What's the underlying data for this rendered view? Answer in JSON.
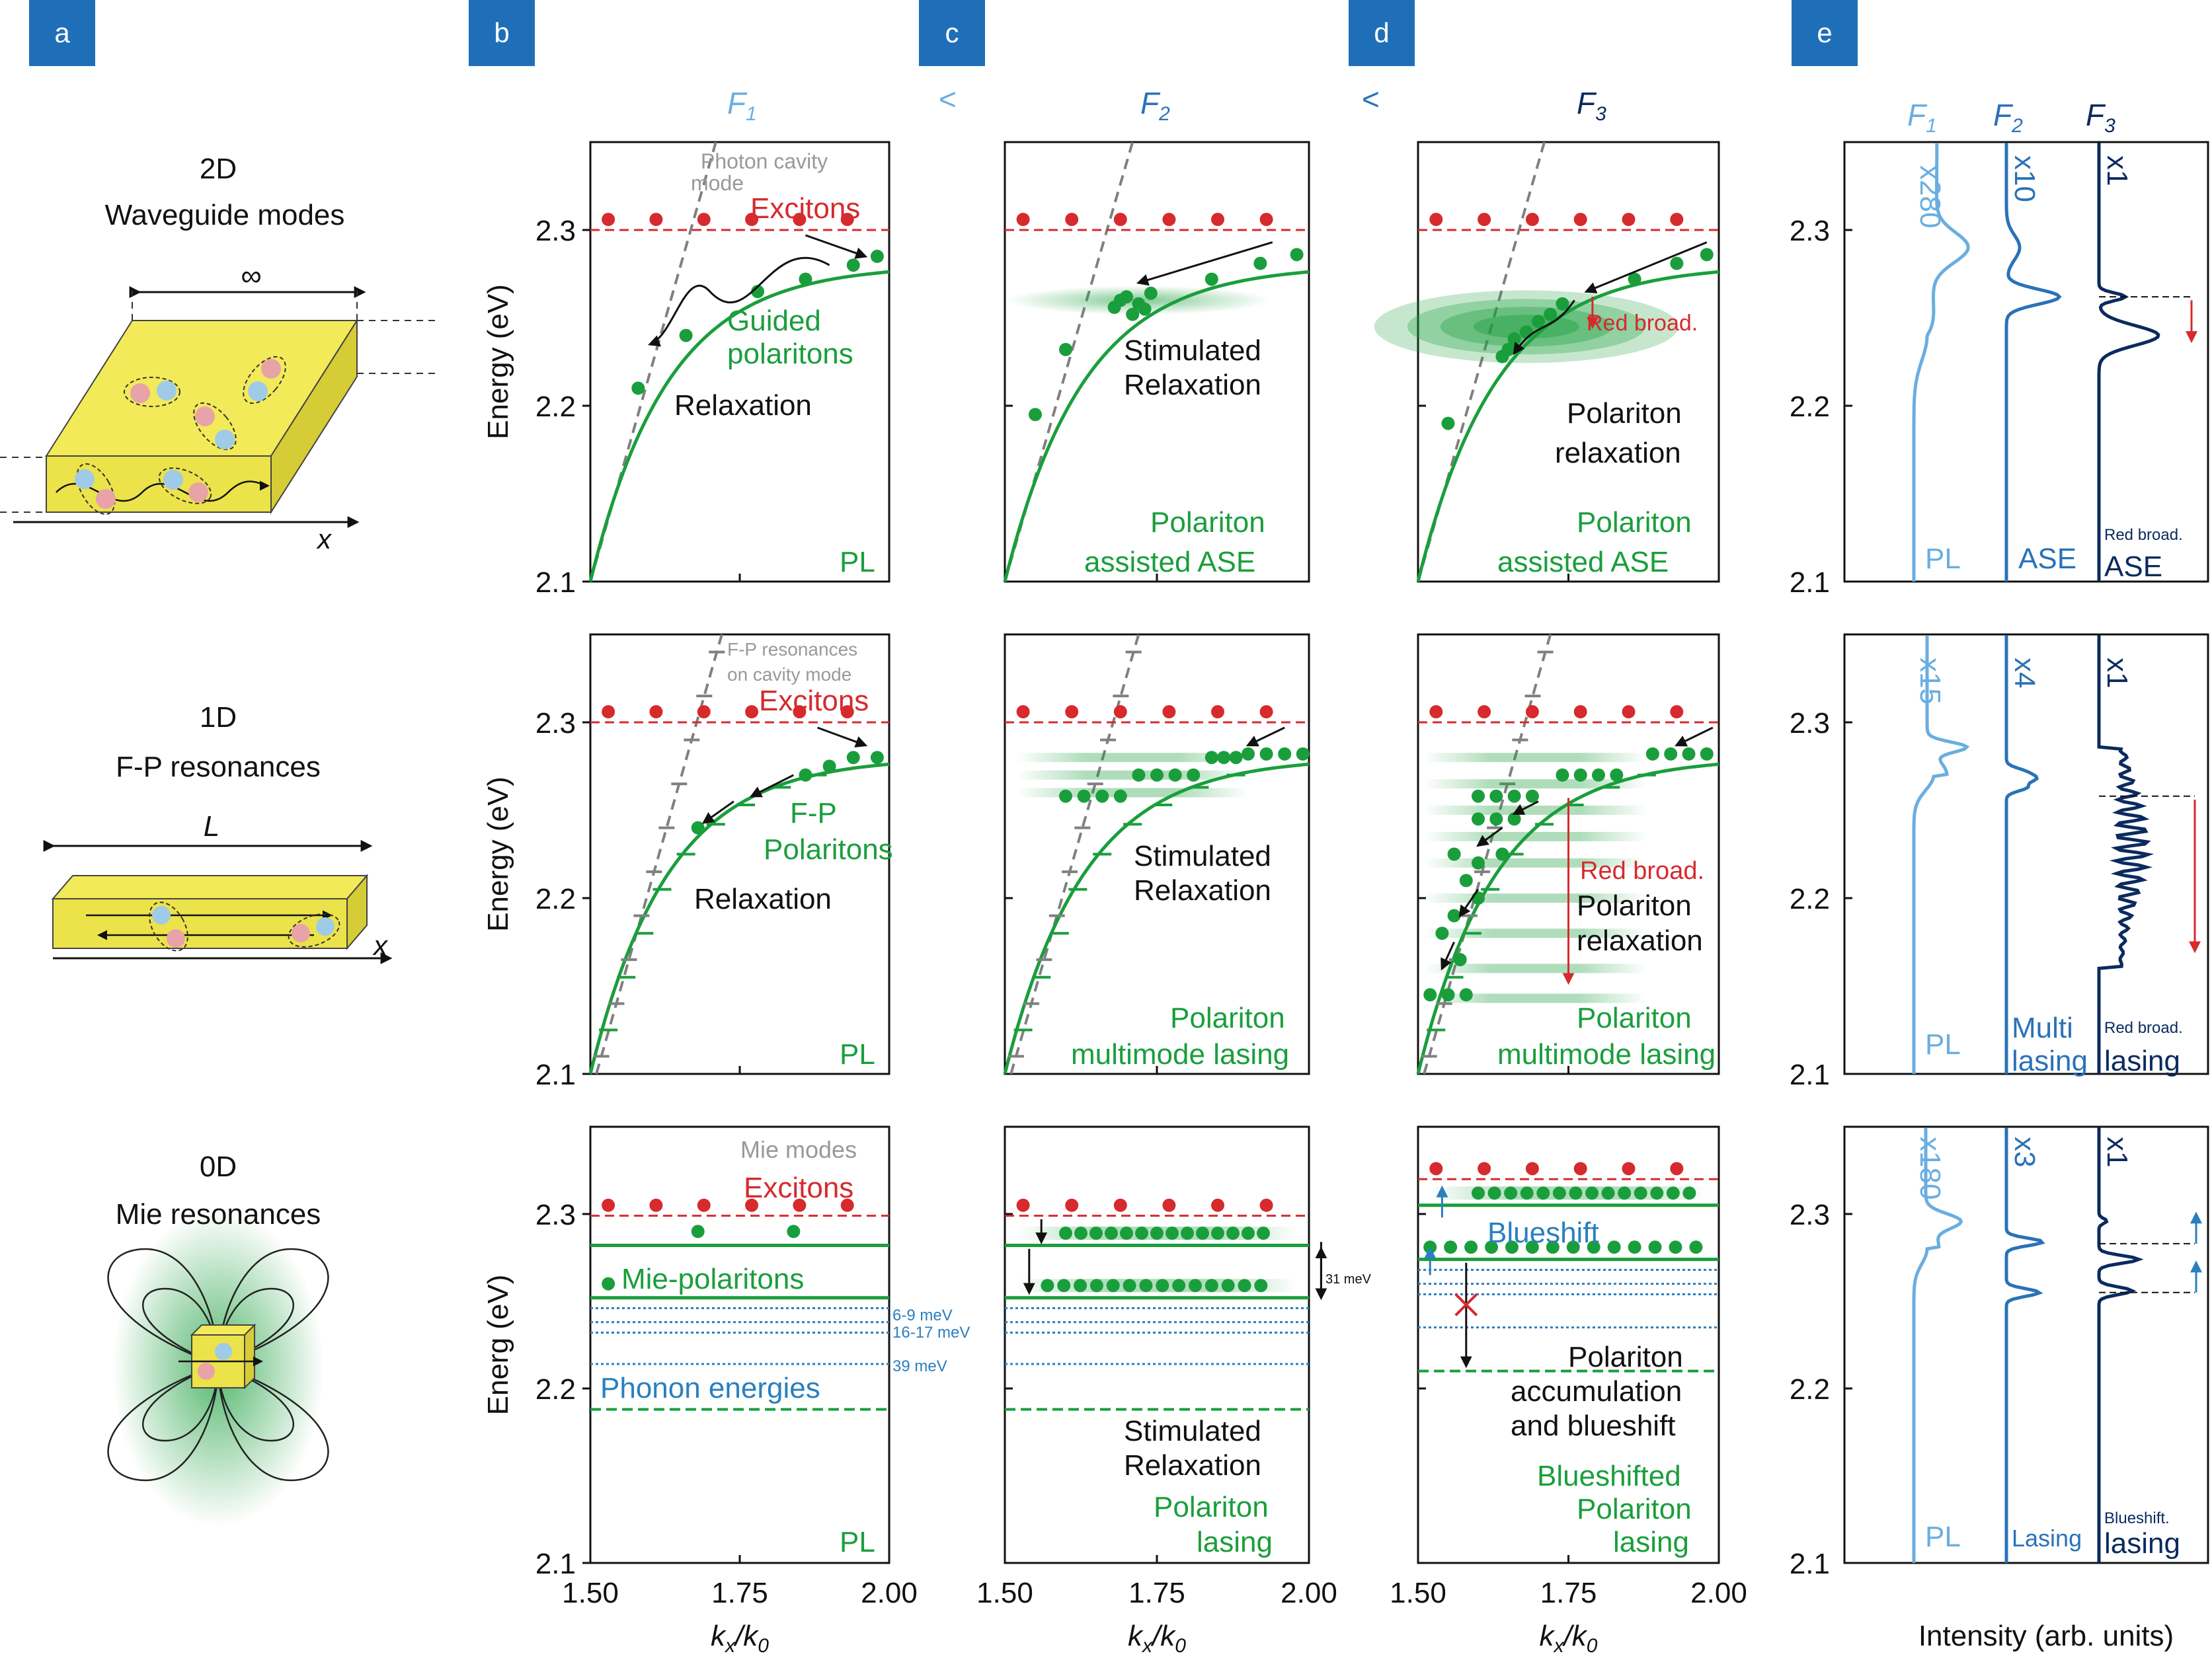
{
  "panel_labels": [
    "a",
    "b",
    "c",
    "d",
    "e"
  ],
  "fluence": {
    "f1": "F",
    "f2": "F",
    "f3": "F",
    "sub1": "1",
    "sub2": "2",
    "sub3": "3",
    "lt": "<"
  },
  "colors": {
    "exciton": "#d62a2d",
    "polariton": "#1a9e3c",
    "cavity": "#808080",
    "phonon": "#2a7fbf",
    "f1": "#6aaee0",
    "f2": "#2a72b8",
    "f3": "#0b2a5e",
    "tag": "#1f6fb8"
  },
  "schematics": {
    "r2d_title": "2D",
    "r2d_sub": "Waveguide modes",
    "inf": "∞",
    "x": "x",
    "r1d_title": "1D",
    "r1d_sub": "F-P resonances",
    "L": "L",
    "r0d_title": "0D",
    "r0d_sub": "Mie resonances"
  },
  "axes": {
    "ylabel_energy": "Energy (eV)",
    "ylabel_energ": "Energ (eV)",
    "ylim": [
      2.1,
      2.35
    ],
    "xlim": [
      1.5,
      2.0
    ],
    "yticks": [
      "2.1",
      "2.2",
      "2.3"
    ],
    "xticks": [
      "1.50",
      "1.75",
      "2.00"
    ],
    "xlabel_k": "k",
    "xlabel_sub_x": "x",
    "xlabel_slash": "/k",
    "xlabel_sub_0": "0",
    "e_xlabel": "Intensity (arb. units)"
  },
  "row1": {
    "b": {
      "photon_mode": "Photon cavity",
      "photon_mode2": "mode",
      "excitons": "Excitons",
      "guided": "Guided",
      "polaritons": "polaritons",
      "relax": "Relaxation",
      "regime": "PL"
    },
    "c": {
      "stim": "Stimulated",
      "relax": "Relaxation",
      "regime1": "Polariton",
      "regime2": "assisted ASE"
    },
    "d": {
      "red": "Red broad.",
      "relax1": "Polariton",
      "relax2": "relaxation",
      "regime1": "Polariton",
      "regime2": "assisted ASE"
    },
    "e": {
      "m1": "x280",
      "m2": "x10",
      "m3": "x1",
      "l1": "PL",
      "l2": "ASE",
      "l3": "ASE",
      "l3small": "Red broad."
    }
  },
  "row2": {
    "b": {
      "fp": "F-P resonances",
      "fp2": "on cavity mode",
      "excitons": "Excitons",
      "fp_pol1": "F-P",
      "fp_pol2": "Polaritons",
      "relax": "Relaxation",
      "regime": "PL"
    },
    "c": {
      "stim": "Stimulated",
      "relax": "Relaxation",
      "regime1": "Polariton",
      "regime2": "multimode lasing"
    },
    "d": {
      "red": "Red broad.",
      "relax1": "Polariton",
      "relax2": "relaxation",
      "regime1": "Polariton",
      "regime2": "multimode lasing"
    },
    "e": {
      "m1": "x15",
      "m2": "x4",
      "m3": "x1",
      "l1": "PL",
      "l2a": "Multi",
      "l2b": "lasing",
      "l3": "lasing",
      "l3small": "Red broad."
    }
  },
  "row3": {
    "b": {
      "mie": "Mie modes",
      "excitons": "Excitons",
      "mie_pol": "Mie-polaritons",
      "ph1": "6-9 meV",
      "ph2": "16-17 meV",
      "ph3": "39 meV",
      "phonon": "Phonon energies",
      "regime": "PL"
    },
    "c": {
      "delta": "31 meV",
      "stim": "Stimulated",
      "relax": "Relaxation",
      "regime1": "Polariton",
      "regime2": "lasing"
    },
    "d": {
      "blue": "Blueshift",
      "acc1": "Polariton",
      "acc2": "accumulation",
      "acc3": "and blueshift",
      "regime1": "Blueshifted",
      "regime2": "Polariton",
      "regime3": "lasing"
    },
    "e": {
      "m1": "x180",
      "m2": "x3",
      "m3": "x1",
      "l1": "PL",
      "l2": "Lasing",
      "l3": "lasing",
      "l3small": "Blueshift."
    }
  }
}
